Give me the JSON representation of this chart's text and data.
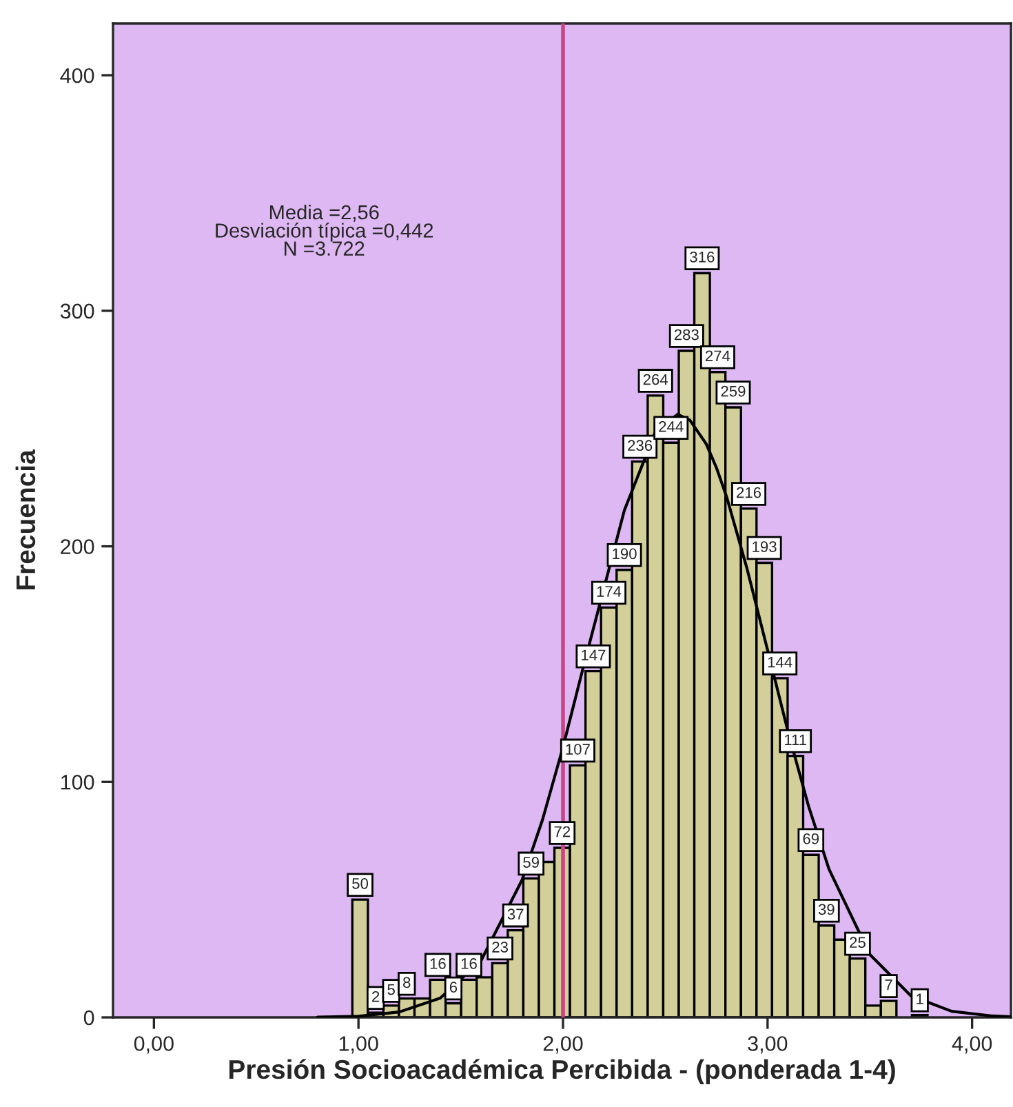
{
  "chart_data": {
    "type": "histogram",
    "xlabel": "Presión Socioacadémica Percibida - (ponderada 1-4)",
    "ylabel": "Frecuencia",
    "annotations": [
      "Media =2,56\nDesviación típica =0,442\nN =3.722"
    ],
    "bins": [
      0.97,
      1.046,
      1.122,
      1.198,
      1.274,
      1.35,
      1.426,
      1.502,
      1.578,
      1.654,
      1.73,
      1.806,
      1.882,
      1.958,
      2.034,
      2.11,
      2.186,
      2.262,
      2.338,
      2.414,
      2.49,
      2.566,
      2.642,
      2.718,
      2.794,
      2.87,
      2.946,
      3.022,
      3.098,
      3.174,
      3.25,
      3.326,
      3.402,
      3.478,
      3.554,
      3.63,
      3.706,
      3.782
    ],
    "values": [
      50,
      2,
      5,
      8,
      8,
      16,
      6,
      16,
      17,
      23,
      37,
      59,
      66,
      72,
      107,
      147,
      174,
      190,
      236,
      264,
      244,
      283,
      316,
      274,
      259,
      216,
      193,
      144,
      111,
      69,
      39,
      33,
      25,
      5,
      7,
      0,
      1
    ],
    "value_labels": [
      "50",
      "2",
      "5",
      "8",
      null,
      "16",
      "6",
      "16",
      null,
      "23",
      "37",
      "59",
      null,
      "72",
      "107",
      "147",
      "174",
      "190",
      "236",
      "264",
      "244",
      "283",
      "316",
      "274",
      "259",
      "216",
      "193",
      "144",
      "111",
      "69",
      "39",
      null,
      "25",
      null,
      "7",
      null,
      "1"
    ],
    "color": "#d3cf9b",
    "series": [
      {
        "type": "line",
        "color": "#000000",
        "x": [
          0.8,
          1.0,
          1.2,
          1.4,
          1.6,
          1.8,
          1.9,
          2.0,
          2.1,
          2.3,
          2.45,
          2.56,
          2.62,
          2.7,
          2.75,
          2.8,
          2.9,
          3.0,
          3.1,
          3.2,
          3.3,
          3.5,
          3.7,
          3.9,
          4.1,
          4.19
        ],
        "values": [
          0.1,
          0.5,
          2.3,
          8.2,
          24.2,
          58.4,
          84.0,
          114.8,
          149.0,
          215.3,
          248.2,
          256.0,
          253.6,
          243.5,
          233.4,
          221.0,
          190.4,
          156.0,
          121.3,
          89.8,
          63.0,
          26.7,
          9.2,
          2.6,
          0.6,
          0.3
        ]
      }
    ],
    "ref_lines": [
      {
        "axis": "x",
        "value": 2.0,
        "color": "#cc4488"
      }
    ],
    "xlim": [
      -0.2,
      4.19
    ],
    "ylim": [
      0,
      422
    ],
    "xticks": [
      {
        "value": 0,
        "label": "0,00"
      },
      {
        "value": 1,
        "label": "1,00"
      },
      {
        "value": 2,
        "label": "2,00"
      },
      {
        "value": 3,
        "label": "3,00"
      },
      {
        "value": 4,
        "label": "4,00"
      }
    ],
    "yticks": [
      0,
      100,
      200,
      300,
      400
    ],
    "grid": false,
    "legend": false
  }
}
